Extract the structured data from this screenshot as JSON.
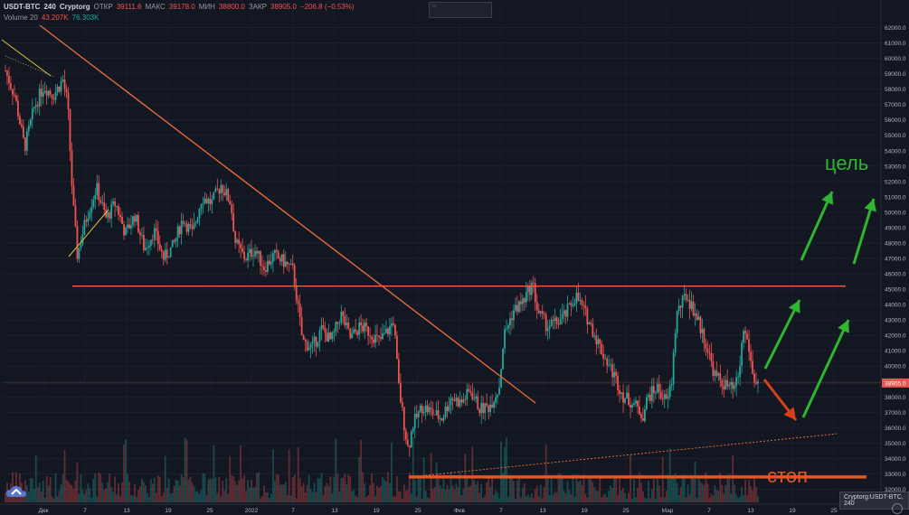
{
  "legend": {
    "symbol": "USDT-BTC",
    "interval": "240",
    "exchange": "Cryptorg",
    "open_label": "ОТКР",
    "open_value": "39111.6",
    "high_label": "МАКС",
    "high_value": "39178.0",
    "low_label": "МИН",
    "low_value": "38800.0",
    "close_label": "ЗАКР",
    "close_value": "38905.0",
    "change": "−206.8 (−0.53%)",
    "volume_name": "Volume 20",
    "volume_value": "43.207K",
    "volume_ma": "76.303K"
  },
  "badge": "Cryptorg:USDT-BTC, 240",
  "annotations": {
    "target": "цель",
    "stop": "стоп"
  },
  "price_tag": "38905.0",
  "colors": {
    "up": "#26a69a",
    "down": "#ef5350",
    "trend": "#e0693a",
    "arrow_up": "#2fb52f",
    "arrow_down": "#d8401a",
    "bg": "#131722"
  },
  "chart_data": {
    "type": "candlestick",
    "symbol": "USDT-BTC",
    "y_ticks": [
      32000,
      33000,
      34000,
      35000,
      36000,
      37000,
      38000,
      39000,
      40000,
      41000,
      42000,
      43000,
      44000,
      45000,
      46000,
      47000,
      48000,
      49000,
      50000,
      51000,
      52000,
      53000,
      54000,
      55000,
      56000,
      57000,
      58000,
      59000,
      60000,
      61000,
      62000
    ],
    "ylim": [
      31500,
      62500
    ],
    "x_ticks": [
      "Дек",
      "7",
      "13",
      "19",
      "25",
      "2022",
      "7",
      "13",
      "19",
      "25",
      "Фев",
      "7",
      "13",
      "19",
      "25",
      "Мар",
      "7",
      "13",
      "19",
      "25"
    ],
    "price_path": [
      [
        0,
        59200
      ],
      [
        2,
        57500
      ],
      [
        4,
        54200
      ],
      [
        6,
        56800
      ],
      [
        8,
        58200
      ],
      [
        10,
        57600
      ],
      [
        12,
        58600
      ],
      [
        13,
        57000
      ],
      [
        14,
        51000
      ],
      [
        15,
        47200
      ],
      [
        17,
        49800
      ],
      [
        19,
        51600
      ],
      [
        21,
        49600
      ],
      [
        23,
        50600
      ],
      [
        25,
        48600
      ],
      [
        27,
        49800
      ],
      [
        29,
        47600
      ],
      [
        31,
        48800
      ],
      [
        33,
        47000
      ],
      [
        35,
        47800
      ],
      [
        37,
        49600
      ],
      [
        39,
        48600
      ],
      [
        41,
        51000
      ],
      [
        43,
        50600
      ],
      [
        45,
        51800
      ],
      [
        47,
        50600
      ],
      [
        48,
        48000
      ],
      [
        50,
        47000
      ],
      [
        52,
        47600
      ],
      [
        54,
        46400
      ],
      [
        56,
        47200
      ],
      [
        58,
        46800
      ],
      [
        60,
        46200
      ],
      [
        62,
        41600
      ],
      [
        64,
        41200
      ],
      [
        66,
        42400
      ],
      [
        68,
        41600
      ],
      [
        70,
        43400
      ],
      [
        72,
        41800
      ],
      [
        74,
        42600
      ],
      [
        76,
        42200
      ],
      [
        78,
        41600
      ],
      [
        80,
        42400
      ],
      [
        81,
        43000
      ],
      [
        82,
        38800
      ],
      [
        83,
        36600
      ],
      [
        84,
        34600
      ],
      [
        85,
        36200
      ],
      [
        87,
        37400
      ],
      [
        89,
        37000
      ],
      [
        91,
        36600
      ],
      [
        93,
        38000
      ],
      [
        95,
        37600
      ],
      [
        97,
        38400
      ],
      [
        99,
        37200
      ],
      [
        101,
        37400
      ],
      [
        103,
        38600
      ],
      [
        104,
        42000
      ],
      [
        106,
        43600
      ],
      [
        108,
        44200
      ],
      [
        110,
        45400
      ],
      [
        111,
        43600
      ],
      [
        113,
        42600
      ],
      [
        115,
        42800
      ],
      [
        117,
        43400
      ],
      [
        119,
        44600
      ],
      [
        121,
        43400
      ],
      [
        123,
        42000
      ],
      [
        125,
        40600
      ],
      [
        127,
        39400
      ],
      [
        129,
        38000
      ],
      [
        131,
        37600
      ],
      [
        133,
        36800
      ],
      [
        134,
        38000
      ],
      [
        136,
        38600
      ],
      [
        138,
        37600
      ],
      [
        139,
        39000
      ],
      [
        140,
        43400
      ],
      [
        142,
        44600
      ],
      [
        144,
        43400
      ],
      [
        146,
        41600
      ],
      [
        148,
        39400
      ],
      [
        150,
        38800
      ],
      [
        152,
        38400
      ],
      [
        153,
        39400
      ],
      [
        154,
        42400
      ],
      [
        155,
        41400
      ],
      [
        156,
        39200
      ],
      [
        157,
        38905
      ]
    ],
    "volume_level_ma": 76303,
    "last_price": 38905.0,
    "drawings": [
      {
        "type": "trendline",
        "from": [
          "Дек",
          62200
        ],
        "to": [
          100,
          37400
        ]
      },
      {
        "type": "horizontal",
        "y": 45200
      },
      {
        "type": "horizontal",
        "y": 32800
      },
      {
        "type": "dotted_trendline",
        "from": [
          84,
          32900
        ],
        "to": [
          170,
          35600
        ]
      }
    ]
  }
}
